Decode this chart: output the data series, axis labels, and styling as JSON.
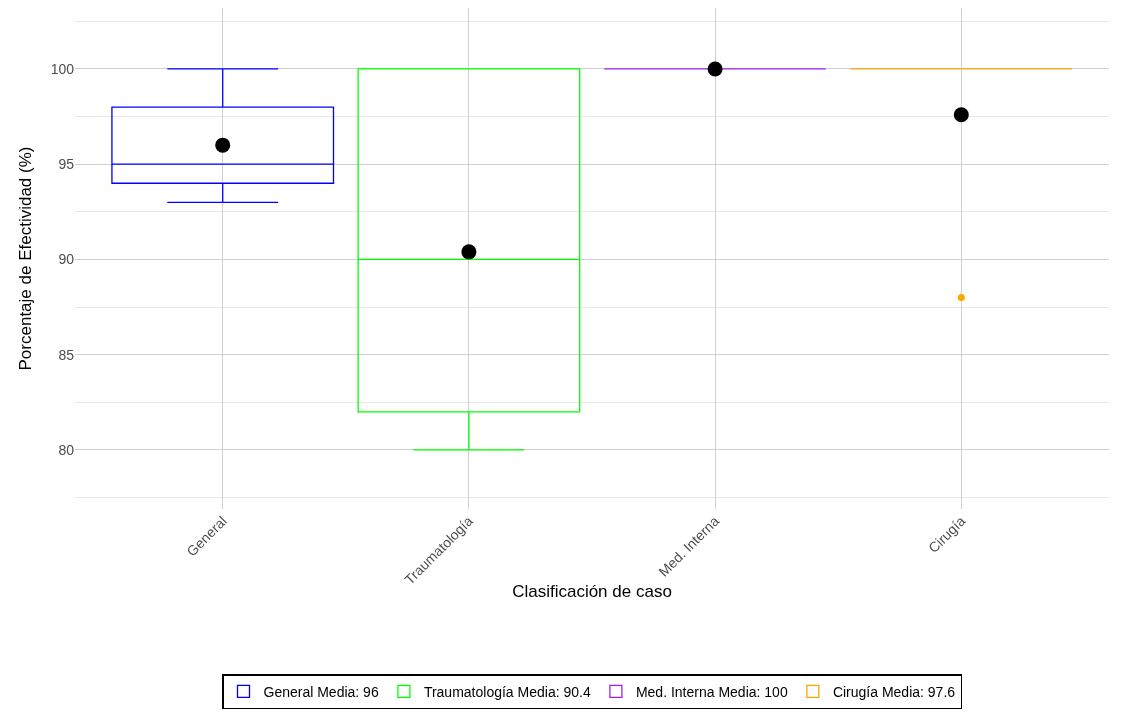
{
  "chart_data": {
    "type": "box",
    "xlabel": "Clasificación de caso",
    "ylabel": "Porcentaje de Efectividad (%)",
    "categories": [
      "General",
      "Traumatología",
      "Med. Interna",
      "Cirugía"
    ],
    "series": [
      {
        "name": "General Media: 96",
        "color": "#0000ff",
        "boxes": [
          {
            "low": 93,
            "q1": 94,
            "median": 95,
            "q3": 98,
            "high": 100
          },
          null,
          null,
          null
        ]
      },
      {
        "name": "Traumatología Media: 90.4",
        "color": "#00ff00",
        "boxes": [
          null,
          {
            "low": 80,
            "q1": 82,
            "median": 90,
            "q3": 100,
            "high": 100
          },
          null,
          null
        ]
      },
      {
        "name": "Med. Interna Media: 100",
        "color": "#a020f0",
        "boxes": [
          null,
          null,
          {
            "low": 100,
            "q1": 100,
            "median": 100,
            "q3": 100,
            "high": 100
          },
          null
        ]
      },
      {
        "name": "Cirugía Media: 97.6",
        "color": "#ffa500",
        "boxes": [
          null,
          null,
          null,
          {
            "low": 100,
            "q1": 100,
            "median": 100,
            "q3": 100,
            "high": 100,
            "outliers": [
              88
            ]
          }
        ]
      },
      {
        "type": "scatter",
        "color": "#000000",
        "marker": "circle",
        "x": [
          "General",
          "Traumatología",
          "Med. Interna",
          "Cirugía"
        ],
        "values": [
          96,
          90.4,
          100,
          97.6
        ]
      }
    ],
    "ylim": [
      76.9,
      103.2
    ],
    "yticks": [
      80,
      85,
      90,
      95,
      100
    ],
    "grid": true,
    "legend": "bottom"
  }
}
